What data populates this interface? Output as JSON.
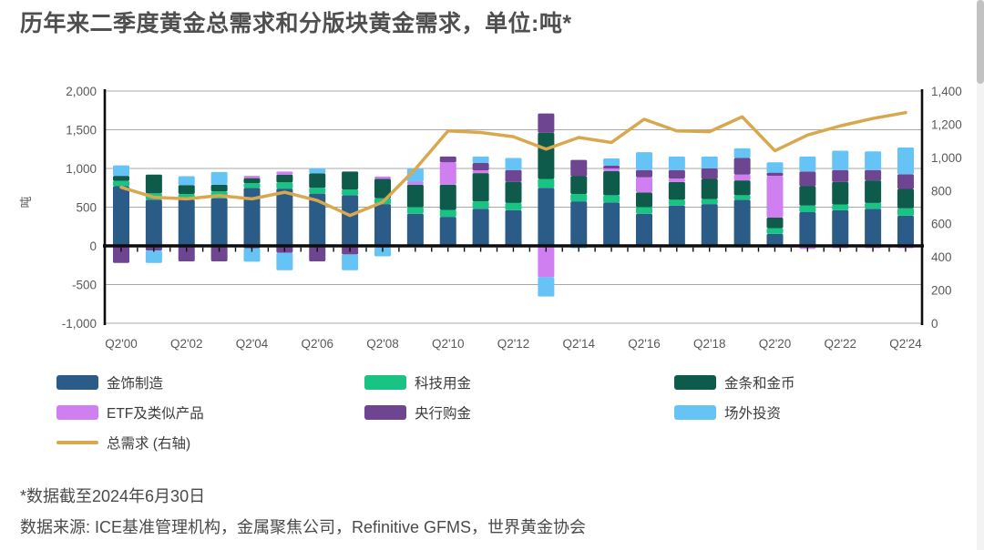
{
  "page": {
    "title": "历年来二季度黄金总需求和分版块黄金需求，单位:吨*",
    "footnote1": "*数据截至2024年6月30日",
    "footnote2": "数据来源: ICE基准管理机构，金属聚焦公司，Refinitive GFMS，世界黄金协会"
  },
  "chart_data": {
    "type": "bar",
    "subtype": "stacked-bars-with-line",
    "unit": "吨",
    "grid": true,
    "left_axis": {
      "title": "吨",
      "min": -1000,
      "max": 2000,
      "step": 500,
      "ticks": [
        "2,000",
        "1,500",
        "1,000",
        "500",
        "0",
        "-500",
        "-1,000"
      ]
    },
    "right_axis": {
      "min": 0,
      "max": 1400,
      "step": 200,
      "ticks": [
        "1,400",
        "1,200",
        "1,000",
        "800",
        "600",
        "400",
        "200",
        "0"
      ]
    },
    "categories": [
      2000,
      2001,
      2002,
      2003,
      2004,
      2005,
      2006,
      2007,
      2008,
      2009,
      2010,
      2011,
      2012,
      2013,
      2014,
      2015,
      2016,
      2017,
      2018,
      2019,
      2020,
      2021,
      2022,
      2023,
      2024
    ],
    "x_tick_labels": [
      "Q2'00",
      "Q2'02",
      "Q2'04",
      "Q2'06",
      "Q2'08",
      "Q2'10",
      "Q2'12",
      "Q2'14",
      "Q2'16",
      "Q2'18",
      "Q2'20",
      "Q2'22",
      "Q2'24"
    ],
    "series": [
      {
        "name": "金饰制造",
        "color": "#2b5c87",
        "values": [
          770,
          595,
          595,
          615,
          750,
          740,
          675,
          655,
          540,
          415,
          375,
          480,
          460,
          750,
          575,
          560,
          415,
          520,
          540,
          595,
          155,
          435,
          460,
          480,
          390
        ]
      },
      {
        "name": "科技用金",
        "color": "#19c383",
        "values": [
          70,
          85,
          75,
          90,
          60,
          80,
          75,
          75,
          75,
          85,
          90,
          95,
          95,
          115,
          95,
          95,
          85,
          75,
          65,
          60,
          75,
          85,
          75,
          75,
          95
        ]
      },
      {
        "name": "金条和金币",
        "color": "#0e5a4b",
        "values": [
          65,
          240,
          115,
          85,
          65,
          100,
          185,
          230,
          250,
          290,
          325,
          365,
          270,
          595,
          230,
          310,
          190,
          230,
          260,
          190,
          135,
          250,
          290,
          290,
          250
        ]
      },
      {
        "name": "ETF及类似产品",
        "color": "#d07ff0",
        "values": [
          0,
          0,
          0,
          0,
          30,
          40,
          0,
          0,
          30,
          40,
          290,
          35,
          0,
          -405,
          0,
          35,
          195,
          45,
          0,
          75,
          540,
          -40,
          -30,
          -30,
          -30
        ]
      },
      {
        "name": "央行购金",
        "color": "#6e4590",
        "values": [
          -220,
          -60,
          -200,
          -200,
          -30,
          -90,
          -200,
          -110,
          -20,
          0,
          75,
          95,
          155,
          250,
          210,
          35,
          95,
          110,
          135,
          215,
          40,
          190,
          155,
          135,
          190
        ]
      },
      {
        "name": "场外投资",
        "color": "#66c3f5",
        "values": [
          135,
          -160,
          115,
          165,
          -175,
          -225,
          65,
          -205,
          -115,
          170,
          0,
          85,
          155,
          -250,
          -30,
          95,
          230,
          175,
          155,
          125,
          135,
          195,
          250,
          240,
          345
        ]
      }
    ],
    "line_series": {
      "name": "总需求 (右轴)",
      "color": "#d9a84e",
      "axis": "right",
      "values": [
        820,
        760,
        750,
        770,
        750,
        790,
        740,
        650,
        730,
        930,
        1160,
        1150,
        1125,
        1050,
        1120,
        1090,
        1230,
        1160,
        1155,
        1245,
        1040,
        1135,
        1190,
        1235,
        1270
      ]
    }
  }
}
